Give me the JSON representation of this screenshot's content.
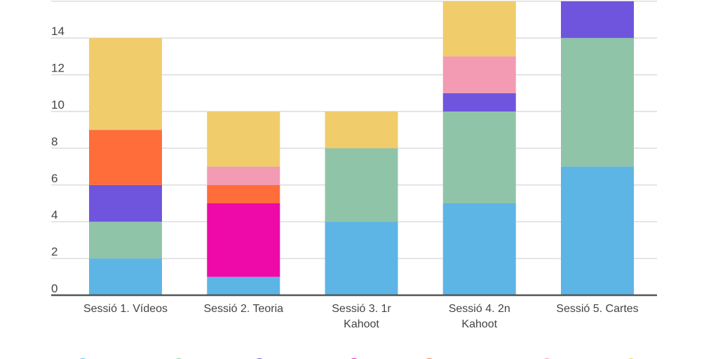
{
  "chart_data": {
    "type": "bar",
    "stacked": true,
    "categories": [
      [
        "Sessió 1. Vídeos"
      ],
      [
        "Sessió 2. Teoria"
      ],
      [
        "Sessió 3. 1r",
        "Kahoot"
      ],
      [
        "Sessió 4. 2n",
        "Kahoot"
      ],
      [
        "Sessió 5. Cartes"
      ]
    ],
    "series": [
      {
        "color": "#5DB5E5",
        "values": [
          2,
          1,
          4,
          5,
          7
        ]
      },
      {
        "color": "#8FC4A8",
        "values": [
          2,
          0,
          4,
          5,
          7
        ]
      },
      {
        "color": "#6F55DE",
        "values": [
          2,
          0,
          0,
          1,
          2
        ]
      },
      {
        "color": "#EE09A9",
        "values": [
          0,
          4,
          0,
          0,
          0
        ]
      },
      {
        "color": "#FF6D3A",
        "values": [
          3,
          1,
          0,
          0,
          0
        ]
      },
      {
        "color": "#F29BB3",
        "values": [
          0,
          1,
          0,
          2,
          0
        ]
      },
      {
        "color": "#F0CC6B",
        "values": [
          5,
          3,
          2,
          3,
          0
        ]
      }
    ],
    "yticks": [
      0,
      2,
      4,
      6,
      8,
      10,
      12,
      14
    ],
    "ylim": [
      0,
      16
    ],
    "grid": true,
    "legend": "bottom",
    "title": "",
    "xlabel": "",
    "ylabel": ""
  }
}
